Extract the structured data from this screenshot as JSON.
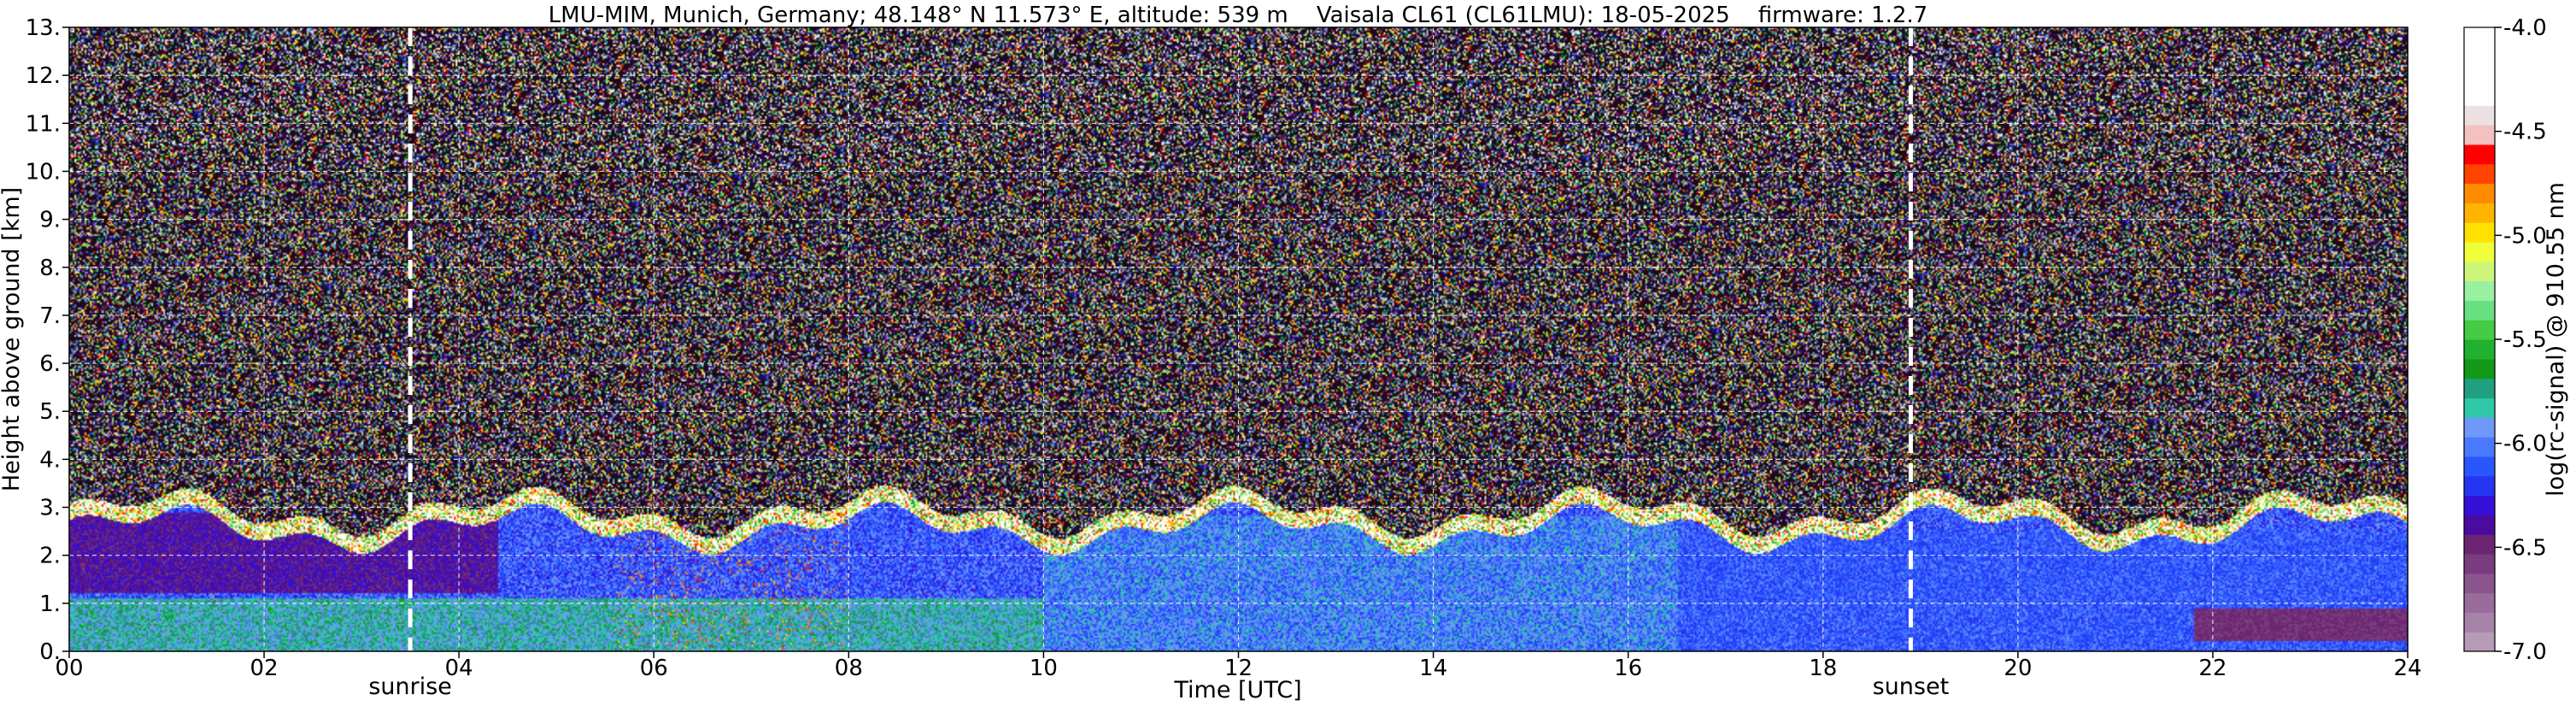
{
  "chart_data": {
    "type": "heatmap",
    "title": "LMU-MIM, Munich, Germany; 48.148° N 11.573° E, altitude: 539 m    Vaisala CL61 (CL61LMU): 18-05-2025    firmware: 1.2.7",
    "xlabel": "Time [UTC]",
    "ylabel": "Height above ground [km]",
    "xlim": [
      0,
      24
    ],
    "ylim": [
      0,
      13
    ],
    "x_ticks": [
      0,
      2,
      4,
      6,
      8,
      10,
      12,
      14,
      16,
      18,
      20,
      22,
      24
    ],
    "x_tick_labels": [
      "00",
      "02",
      "04",
      "06",
      "08",
      "10",
      "12",
      "14",
      "16",
      "18",
      "20",
      "22",
      "24"
    ],
    "y_ticks": [
      0,
      1,
      2,
      3,
      4,
      5,
      6,
      7,
      8,
      9,
      10,
      11,
      12,
      13
    ],
    "y_tick_labels": [
      "0.",
      "1.",
      "2.",
      "3.",
      "4.",
      "5.",
      "6.",
      "7.",
      "8.",
      "9.",
      "10.",
      "11.",
      "12.",
      "13."
    ],
    "grid": true,
    "markers": [
      {
        "label": "sunrise",
        "x": 3.5
      },
      {
        "label": "sunset",
        "x": 18.9
      }
    ],
    "colorbar": {
      "label": "log(rc-signal) @ 910.55 nm",
      "range": [
        -7.0,
        -4.0
      ],
      "ticks": [
        -4.0,
        -4.5,
        -5.0,
        -5.5,
        -6.0,
        -6.5,
        -7.0
      ],
      "tick_labels": [
        "-4.0",
        "-4.5",
        "-5.0",
        "-5.5",
        "-6.0",
        "-6.5",
        "-7.0"
      ],
      "colors": [
        "#b59bb6",
        "#a681a8",
        "#9a6c9c",
        "#8a548d",
        "#7a3c7e",
        "#6b2572",
        "#4b0aa0",
        "#3410d8",
        "#2436f2",
        "#2a56ff",
        "#4a78ff",
        "#6f98f8",
        "#2fc8a8",
        "#1fa080",
        "#139818",
        "#22b030",
        "#44cc44",
        "#66e080",
        "#99f0a0",
        "#ccf57a",
        "#f0ff3a",
        "#ffe000",
        "#ffb400",
        "#ff8c00",
        "#ff4400",
        "#ff0000",
        "#f4c0c0",
        "#ece0e0",
        "#ffffff",
        "#ffffff",
        "#ffffff",
        "#ffffff"
      ]
    },
    "regions": [
      {
        "name": "noise",
        "t0": 0,
        "t1": 24,
        "h0": 3.1,
        "h1": 13,
        "level": -7.0
      },
      {
        "name": "residual-layer",
        "t0": 0,
        "t1": 4.4,
        "h0": 1.2,
        "h1": 2.9,
        "level": -6.55
      },
      {
        "name": "surface-layer-morning",
        "t0": 0,
        "t1": 10,
        "h0": 0,
        "h1": 1.1,
        "level": -6.0
      },
      {
        "name": "boundary-layer-day",
        "t0": 10,
        "t1": 16.5,
        "h0": 0,
        "h1": 2.8,
        "level": -6.2
      },
      {
        "name": "evening-layer",
        "t0": 16.5,
        "t1": 24,
        "h0": 0,
        "h1": 2.5,
        "level": -6.25
      },
      {
        "name": "night-layer",
        "t0": 21.8,
        "t1": 24,
        "h0": 0.2,
        "h1": 0.9,
        "level": -6.6
      },
      {
        "name": "cloud-top",
        "t0": 0,
        "t1": 24,
        "h0": 2.2,
        "h1": 3.2,
        "level": -4.5
      }
    ]
  }
}
